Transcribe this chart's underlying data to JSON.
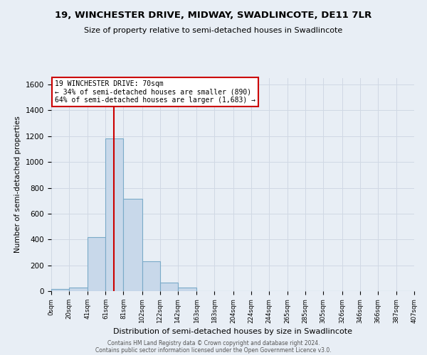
{
  "title": "19, WINCHESTER DRIVE, MIDWAY, SWADLINCOTE, DE11 7LR",
  "subtitle": "Size of property relative to semi-detached houses in Swadlincote",
  "xlabel": "Distribution of semi-detached houses by size in Swadlincote",
  "ylabel": "Number of semi-detached properties",
  "bin_edges": [
    0,
    20,
    41,
    61,
    81,
    102,
    122,
    142,
    163,
    183,
    204,
    224,
    244,
    265,
    285,
    305,
    326,
    346,
    366,
    387,
    407
  ],
  "bar_heights": [
    15,
    25,
    420,
    1180,
    715,
    230,
    65,
    25,
    0,
    0,
    0,
    0,
    0,
    0,
    0,
    0,
    0,
    0,
    0,
    0
  ],
  "bar_color": "#c8d8ea",
  "bar_edgecolor": "#7aaac8",
  "property_size": 70,
  "vline_color": "#cc0000",
  "ann_line1": "19 WINCHESTER DRIVE: 70sqm",
  "ann_line2": "← 34% of semi-detached houses are smaller (890)",
  "ann_line3": "64% of semi-detached houses are larger (1,683) →",
  "annotation_box_edgecolor": "#cc0000",
  "annotation_box_facecolor": "#ffffff",
  "ylim": [
    0,
    1650
  ],
  "yticks": [
    0,
    200,
    400,
    600,
    800,
    1000,
    1200,
    1400,
    1600
  ],
  "xtick_labels": [
    "0sqm",
    "20sqm",
    "41sqm",
    "61sqm",
    "81sqm",
    "102sqm",
    "122sqm",
    "142sqm",
    "163sqm",
    "183sqm",
    "204sqm",
    "224sqm",
    "244sqm",
    "265sqm",
    "285sqm",
    "305sqm",
    "326sqm",
    "346sqm",
    "366sqm",
    "387sqm",
    "407sqm"
  ],
  "grid_color": "#d0d8e4",
  "background_color": "#e8eef5",
  "footer_line1": "Contains HM Land Registry data © Crown copyright and database right 2024.",
  "footer_line2": "Contains public sector information licensed under the Open Government Licence v3.0."
}
